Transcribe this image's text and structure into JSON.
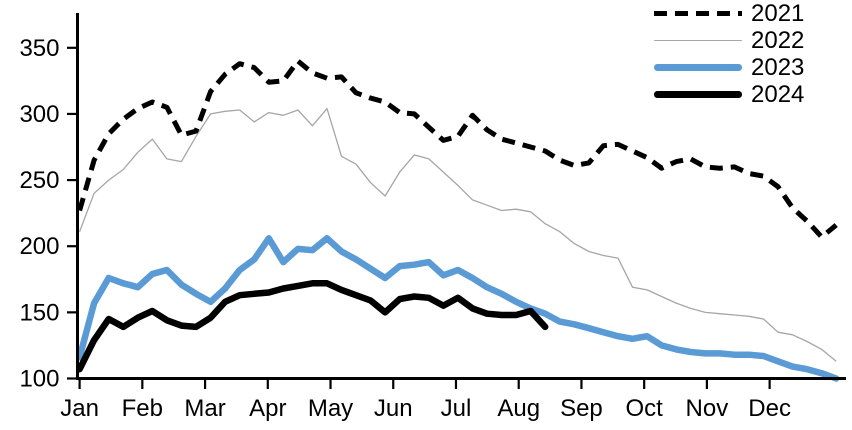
{
  "chart_data": {
    "type": "line",
    "title": "",
    "x_axis": {
      "tick_labels": [
        "Jan",
        "Feb",
        "Mar",
        "Apr",
        "May",
        "Jun",
        "Jul",
        "Aug",
        "Sep",
        "Oct",
        "Nov",
        "Dec"
      ],
      "resolution": "weekly"
    },
    "y_axis": {
      "ticks": [
        100,
        150,
        200,
        250,
        300,
        350
      ],
      "min": 100,
      "max": 375
    },
    "grid": false,
    "legend_position": "top-right",
    "series": [
      {
        "name": "2021",
        "line_style": "dashed",
        "color": "#000000",
        "width": 5,
        "values": [
          227,
          265,
          285,
          296,
          304,
          309,
          305,
          284,
          287,
          317,
          330,
          338,
          335,
          324,
          325,
          340,
          331,
          327,
          328,
          316,
          312,
          309,
          301,
          300,
          290,
          280,
          283,
          299,
          288,
          281,
          278,
          275,
          272,
          265,
          261,
          263,
          276,
          277,
          272,
          267,
          259,
          264,
          266,
          260,
          259,
          260,
          255,
          253,
          245,
          229,
          219,
          207,
          216
        ]
      },
      {
        "name": "2022",
        "line_style": "solid",
        "color": "#a6a6a6",
        "width": 1.3,
        "values": [
          211,
          240,
          250,
          258,
          271,
          281,
          266,
          264,
          283,
          300,
          302,
          303,
          294,
          301,
          299,
          303,
          291,
          304,
          268,
          262,
          248,
          238,
          256,
          269,
          266,
          256,
          246,
          235,
          231,
          227,
          228,
          226,
          217,
          211,
          202,
          196,
          193,
          191,
          169,
          167,
          162,
          157,
          153,
          150,
          149,
          148,
          147,
          145,
          135,
          133,
          128,
          122,
          113
        ]
      },
      {
        "name": "2023",
        "line_style": "solid",
        "color": "#5b9bd5",
        "width": 6.5,
        "values": [
          116,
          157,
          176,
          172,
          169,
          179,
          182,
          171,
          164,
          158,
          168,
          182,
          190,
          206,
          188,
          198,
          197,
          206,
          196,
          190,
          183,
          176,
          185,
          186,
          188,
          178,
          182,
          176,
          169,
          164,
          158,
          153,
          149,
          143,
          141,
          138,
          135,
          132,
          130,
          132,
          125,
          122,
          120,
          119,
          119,
          118,
          118,
          117,
          113,
          109,
          107,
          104,
          100
        ]
      },
      {
        "name": "2024",
        "line_style": "solid",
        "color": "#000000",
        "width": 6.5,
        "values": [
          107,
          129,
          145,
          139,
          146,
          151,
          144,
          140,
          139,
          146,
          158,
          163,
          164,
          165,
          168,
          170,
          172,
          172,
          167,
          163,
          159,
          150,
          160,
          162,
          161,
          155,
          161,
          153,
          149,
          148,
          148,
          151,
          139
        ]
      }
    ]
  }
}
